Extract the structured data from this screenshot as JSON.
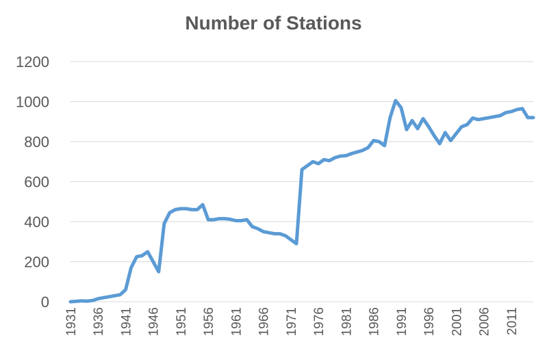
{
  "chart_data": {
    "type": "line",
    "title": "Number of Stations",
    "xlabel": "",
    "ylabel": "",
    "ylim": [
      0,
      1200
    ],
    "yticks": [
      0,
      200,
      400,
      600,
      800,
      1000,
      1200
    ],
    "xticks": [
      1931,
      1936,
      1941,
      1946,
      1951,
      1956,
      1961,
      1966,
      1971,
      1976,
      1981,
      1986,
      1991,
      1996,
      2001,
      2006,
      2011
    ],
    "grid": true,
    "legend": "none",
    "line_color": "#5B9BD5",
    "x": [
      1931,
      1932,
      1933,
      1934,
      1935,
      1936,
      1937,
      1938,
      1939,
      1940,
      1941,
      1942,
      1943,
      1944,
      1945,
      1946,
      1947,
      1948,
      1949,
      1950,
      1951,
      1952,
      1953,
      1954,
      1955,
      1956,
      1957,
      1958,
      1959,
      1960,
      1961,
      1962,
      1963,
      1964,
      1965,
      1966,
      1967,
      1968,
      1969,
      1970,
      1971,
      1972,
      1973,
      1974,
      1975,
      1976,
      1977,
      1978,
      1979,
      1980,
      1981,
      1982,
      1983,
      1984,
      1985,
      1986,
      1987,
      1988,
      1989,
      1990,
      1991,
      1992,
      1993,
      1994,
      1995,
      1996,
      1997,
      1998,
      1999,
      2000,
      2001,
      2002,
      2003,
      2004,
      2005,
      2006,
      2007,
      2008,
      2009,
      2010,
      2011,
      2012,
      2013,
      2014,
      2015
    ],
    "series": [
      {
        "values": [
          0,
          2,
          4,
          3,
          6,
          15,
          20,
          25,
          30,
          35,
          60,
          170,
          225,
          230,
          250,
          200,
          150,
          390,
          445,
          460,
          465,
          465,
          460,
          460,
          485,
          410,
          410,
          415,
          415,
          412,
          405,
          405,
          410,
          375,
          365,
          350,
          345,
          340,
          340,
          330,
          310,
          290,
          660,
          680,
          700,
          690,
          710,
          705,
          720,
          728,
          730,
          740,
          748,
          756,
          770,
          805,
          800,
          780,
          920,
          1005,
          970,
          860,
          905,
          865,
          915,
          875,
          830,
          790,
          845,
          805,
          840,
          875,
          885,
          918,
          910,
          915,
          920,
          925,
          930,
          945,
          950,
          960,
          965,
          920,
          920
        ]
      }
    ]
  }
}
